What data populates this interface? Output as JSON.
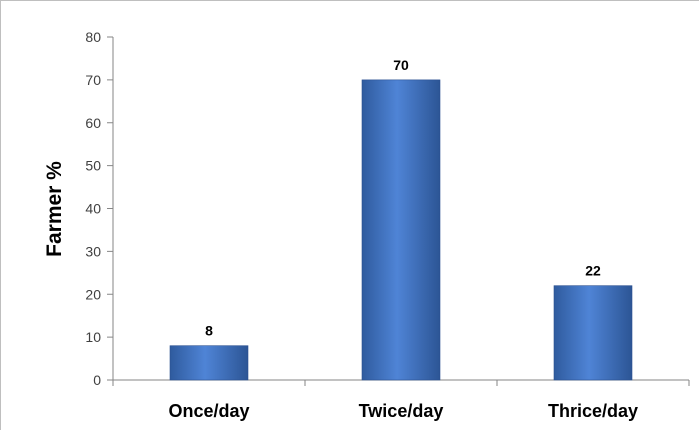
{
  "chart_data": {
    "type": "bar",
    "categories": [
      "Once/day",
      "Twice/day",
      "Thrice/day"
    ],
    "values": [
      8,
      70,
      22
    ],
    "data_labels": [
      "8",
      "70",
      "22"
    ],
    "title": "",
    "xlabel": "",
    "ylabel": "Farmer %",
    "ylim": [
      0,
      80
    ],
    "yticks": [
      0,
      10,
      20,
      30,
      40,
      50,
      60,
      70,
      80
    ],
    "grid": false,
    "legend": "none",
    "bar_color": "#4472c4"
  }
}
